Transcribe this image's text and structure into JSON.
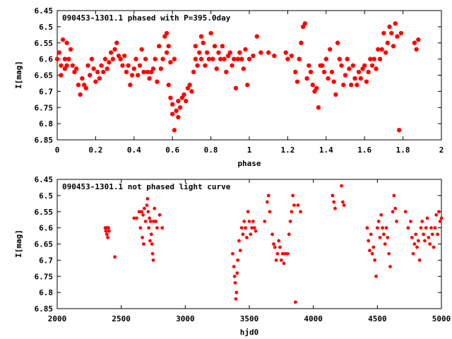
{
  "chart_data": [
    {
      "type": "scatter",
      "title": "090453-1301.1 phased with P=395.0day",
      "xlabel": "phase",
      "ylabel": "I[mag]",
      "xlim": [
        0,
        2
      ],
      "ylim": [
        6.85,
        6.45
      ],
      "y_inverted": true,
      "grid": false,
      "marker_color": "#ff0000",
      "xticks": [
        "0",
        "0.2",
        "0.4",
        "0.6",
        "0.8",
        "1",
        "1.2",
        "1.4",
        "1.6",
        "1.8",
        "2"
      ],
      "xtick_values": [
        0,
        0.2,
        0.4,
        0.6,
        0.8,
        1,
        1.2,
        1.4,
        1.6,
        1.8,
        2
      ],
      "yticks": [
        "6.45",
        "6.5",
        "6.55",
        "6.6",
        "6.65",
        "6.7",
        "6.75",
        "6.8",
        "6.85"
      ],
      "ytick_values": [
        6.45,
        6.5,
        6.55,
        6.6,
        6.65,
        6.7,
        6.75,
        6.8,
        6.85
      ],
      "points": [
        [
          0.0,
          6.6
        ],
        [
          0.01,
          6.58
        ],
        [
          0.02,
          6.62
        ],
        [
          0.02,
          6.65
        ],
        [
          0.03,
          6.54
        ],
        [
          0.04,
          6.6
        ],
        [
          0.04,
          6.63
        ],
        [
          0.05,
          6.55
        ],
        [
          0.05,
          6.62
        ],
        [
          0.06,
          6.6
        ],
        [
          0.07,
          6.57
        ],
        [
          0.08,
          6.62
        ],
        [
          0.09,
          6.64
        ],
        [
          0.1,
          6.63
        ],
        [
          0.11,
          6.68
        ],
        [
          0.12,
          6.71
        ],
        [
          0.13,
          6.66
        ],
        [
          0.14,
          6.68
        ],
        [
          0.15,
          6.69
        ],
        [
          0.16,
          6.62
        ],
        [
          0.17,
          6.65
        ],
        [
          0.18,
          6.6
        ],
        [
          0.19,
          6.63
        ],
        [
          0.2,
          6.67
        ],
        [
          0.21,
          6.64
        ],
        [
          0.22,
          6.66
        ],
        [
          0.23,
          6.62
        ],
        [
          0.24,
          6.64
        ],
        [
          0.25,
          6.6
        ],
        [
          0.26,
          6.63
        ],
        [
          0.27,
          6.61
        ],
        [
          0.28,
          6.58
        ],
        [
          0.29,
          6.6
        ],
        [
          0.3,
          6.57
        ],
        [
          0.31,
          6.55
        ],
        [
          0.32,
          6.59
        ],
        [
          0.33,
          6.6
        ],
        [
          0.34,
          6.62
        ],
        [
          0.35,
          6.59
        ],
        [
          0.36,
          6.64
        ],
        [
          0.37,
          6.62
        ],
        [
          0.38,
          6.68
        ],
        [
          0.39,
          6.65
        ],
        [
          0.4,
          6.63
        ],
        [
          0.41,
          6.6
        ],
        [
          0.42,
          6.65
        ],
        [
          0.43,
          6.62
        ],
        [
          0.44,
          6.57
        ],
        [
          0.45,
          6.64
        ],
        [
          0.46,
          6.6
        ],
        [
          0.47,
          6.64
        ],
        [
          0.48,
          6.66
        ],
        [
          0.49,
          6.64
        ],
        [
          0.5,
          6.63
        ],
        [
          0.51,
          6.6
        ],
        [
          0.52,
          6.67
        ],
        [
          0.53,
          6.56
        ],
        [
          0.54,
          6.63
        ],
        [
          0.55,
          6.6
        ],
        [
          0.56,
          6.53
        ],
        [
          0.57,
          6.52
        ],
        [
          0.57,
          6.58
        ],
        [
          0.58,
          6.56
        ],
        [
          0.58,
          6.68
        ],
        [
          0.59,
          6.72
        ],
        [
          0.59,
          6.61
        ],
        [
          0.6,
          6.74
        ],
        [
          0.6,
          6.77
        ],
        [
          0.61,
          6.82
        ],
        [
          0.61,
          6.6
        ],
        [
          0.62,
          6.76
        ],
        [
          0.63,
          6.73
        ],
        [
          0.63,
          6.78
        ],
        [
          0.64,
          6.75
        ],
        [
          0.65,
          6.72
        ],
        [
          0.66,
          6.71
        ],
        [
          0.67,
          6.73
        ],
        [
          0.68,
          6.69
        ],
        [
          0.69,
          6.68
        ],
        [
          0.7,
          6.7
        ],
        [
          0.71,
          6.64
        ],
        [
          0.72,
          6.6
        ],
        [
          0.72,
          6.56
        ],
        [
          0.73,
          6.62
        ],
        [
          0.74,
          6.58
        ],
        [
          0.75,
          6.53
        ],
        [
          0.75,
          6.6
        ],
        [
          0.76,
          6.55
        ],
        [
          0.77,
          6.62
        ],
        [
          0.78,
          6.58
        ],
        [
          0.79,
          6.6
        ],
        [
          0.8,
          6.52
        ],
        [
          0.81,
          6.6
        ],
        [
          0.82,
          6.56
        ],
        [
          0.83,
          6.63
        ],
        [
          0.84,
          6.58
        ],
        [
          0.85,
          6.6
        ],
        [
          0.86,
          6.56
        ],
        [
          0.87,
          6.6
        ],
        [
          0.88,
          6.64
        ],
        [
          0.89,
          6.59
        ],
        [
          0.9,
          6.58
        ],
        [
          0.91,
          6.62
        ],
        [
          0.92,
          6.6
        ],
        [
          0.93,
          6.69
        ],
        [
          0.94,
          6.6
        ],
        [
          0.95,
          6.58
        ],
        [
          0.96,
          6.6
        ],
        [
          0.97,
          6.63
        ],
        [
          0.98,
          6.57
        ],
        [
          0.99,
          6.68
        ],
        [
          1.0,
          6.6
        ],
        [
          1.02,
          6.59
        ],
        [
          1.04,
          6.53
        ],
        [
          1.06,
          6.58
        ],
        [
          1.1,
          6.58
        ],
        [
          1.13,
          6.59
        ],
        [
          1.19,
          6.58
        ],
        [
          1.2,
          6.6
        ],
        [
          1.22,
          6.59
        ],
        [
          1.24,
          6.64
        ],
        [
          1.25,
          6.67
        ],
        [
          1.26,
          6.6
        ],
        [
          1.27,
          6.55
        ],
        [
          1.28,
          6.5
        ],
        [
          1.29,
          6.49
        ],
        [
          1.3,
          6.66
        ],
        [
          1.31,
          6.62
        ],
        [
          1.32,
          6.64
        ],
        [
          1.33,
          6.68
        ],
        [
          1.34,
          6.7
        ],
        [
          1.35,
          6.69
        ],
        [
          1.36,
          6.75
        ],
        [
          1.37,
          6.62
        ],
        [
          1.38,
          6.62
        ],
        [
          1.39,
          6.64
        ],
        [
          1.4,
          6.6
        ],
        [
          1.41,
          6.66
        ],
        [
          1.42,
          6.57
        ],
        [
          1.43,
          6.64
        ],
        [
          1.44,
          6.67
        ],
        [
          1.45,
          6.71
        ],
        [
          1.46,
          6.55
        ],
        [
          1.47,
          6.6
        ],
        [
          1.48,
          6.62
        ],
        [
          1.49,
          6.68
        ],
        [
          1.5,
          6.65
        ],
        [
          1.51,
          6.6
        ],
        [
          1.52,
          6.63
        ],
        [
          1.53,
          6.68
        ],
        [
          1.54,
          6.62
        ],
        [
          1.55,
          6.66
        ],
        [
          1.56,
          6.68
        ],
        [
          1.57,
          6.64
        ],
        [
          1.58,
          6.66
        ],
        [
          1.59,
          6.63
        ],
        [
          1.6,
          6.62
        ],
        [
          1.61,
          6.67
        ],
        [
          1.62,
          6.64
        ],
        [
          1.63,
          6.6
        ],
        [
          1.64,
          6.62
        ],
        [
          1.65,
          6.6
        ],
        [
          1.66,
          6.63
        ],
        [
          1.67,
          6.57
        ],
        [
          1.68,
          6.6
        ],
        [
          1.69,
          6.57
        ],
        [
          1.7,
          6.52
        ],
        [
          1.71,
          6.58
        ],
        [
          1.72,
          6.55
        ],
        [
          1.73,
          6.5
        ],
        [
          1.74,
          6.52
        ],
        [
          1.75,
          6.56
        ],
        [
          1.76,
          6.49
        ],
        [
          1.77,
          6.53
        ],
        [
          1.78,
          6.82
        ],
        [
          1.79,
          6.52
        ],
        [
          1.86,
          6.55
        ],
        [
          1.87,
          6.57
        ],
        [
          1.88,
          6.54
        ]
      ]
    },
    {
      "type": "scatter",
      "title": "090453-1301.1 not phased light curve",
      "xlabel": "hjd0",
      "ylabel": "I[mag]",
      "xlim": [
        2000,
        5000
      ],
      "ylim": [
        6.85,
        6.45
      ],
      "y_inverted": true,
      "grid": false,
      "marker_color": "#ff0000",
      "xticks": [
        "2000",
        "2500",
        "3000",
        "3500",
        "4000",
        "4500",
        "5000"
      ],
      "xtick_values": [
        2000,
        2500,
        3000,
        3500,
        4000,
        4500,
        5000
      ],
      "yticks": [
        "6.45",
        "6.5",
        "6.55",
        "6.6",
        "6.65",
        "6.7",
        "6.75",
        "6.8",
        "6.85"
      ],
      "ytick_values": [
        6.45,
        6.5,
        6.55,
        6.6,
        6.65,
        6.7,
        6.75,
        6.8,
        6.85
      ],
      "points": [
        [
          2375,
          6.6
        ],
        [
          2380,
          6.61
        ],
        [
          2385,
          6.6
        ],
        [
          2388,
          6.62
        ],
        [
          2392,
          6.6
        ],
        [
          2395,
          6.63
        ],
        [
          2400,
          6.6
        ],
        [
          2405,
          6.61
        ],
        [
          2450,
          6.69
        ],
        [
          2600,
          6.57
        ],
        [
          2620,
          6.57
        ],
        [
          2640,
          6.55
        ],
        [
          2650,
          6.6
        ],
        [
          2660,
          6.55
        ],
        [
          2665,
          6.63
        ],
        [
          2670,
          6.56
        ],
        [
          2675,
          6.65
        ],
        [
          2680,
          6.54
        ],
        [
          2690,
          6.58
        ],
        [
          2700,
          6.53
        ],
        [
          2705,
          6.51
        ],
        [
          2710,
          6.55
        ],
        [
          2715,
          6.6
        ],
        [
          2720,
          6.57
        ],
        [
          2725,
          6.64
        ],
        [
          2730,
          6.58
        ],
        [
          2735,
          6.62
        ],
        [
          2740,
          6.65
        ],
        [
          2745,
          6.68
        ],
        [
          2750,
          6.7
        ],
        [
          2755,
          6.58
        ],
        [
          2760,
          6.54
        ],
        [
          2770,
          6.58
        ],
        [
          2780,
          6.6
        ],
        [
          2800,
          6.56
        ],
        [
          2820,
          6.6
        ],
        [
          3370,
          6.68
        ],
        [
          3380,
          6.72
        ],
        [
          3385,
          6.75
        ],
        [
          3390,
          6.77
        ],
        [
          3395,
          6.82
        ],
        [
          3400,
          6.8
        ],
        [
          3405,
          6.74
        ],
        [
          3410,
          6.7
        ],
        [
          3420,
          6.64
        ],
        [
          3430,
          6.67
        ],
        [
          3440,
          6.6
        ],
        [
          3450,
          6.62
        ],
        [
          3460,
          6.58
        ],
        [
          3470,
          6.6
        ],
        [
          3480,
          6.63
        ],
        [
          3490,
          6.55
        ],
        [
          3500,
          6.58
        ],
        [
          3510,
          6.62
        ],
        [
          3520,
          6.6
        ],
        [
          3530,
          6.58
        ],
        [
          3540,
          6.6
        ],
        [
          3550,
          6.61
        ],
        [
          3620,
          6.58
        ],
        [
          3640,
          6.52
        ],
        [
          3650,
          6.5
        ],
        [
          3660,
          6.55
        ],
        [
          3680,
          6.62
        ],
        [
          3690,
          6.65
        ],
        [
          3700,
          6.66
        ],
        [
          3710,
          6.7
        ],
        [
          3720,
          6.68
        ],
        [
          3730,
          6.64
        ],
        [
          3740,
          6.66
        ],
        [
          3750,
          6.7
        ],
        [
          3760,
          6.68
        ],
        [
          3770,
          6.71
        ],
        [
          3780,
          6.68
        ],
        [
          3800,
          6.68
        ],
        [
          3810,
          6.62
        ],
        [
          3820,
          6.58
        ],
        [
          3830,
          6.55
        ],
        [
          3840,
          6.5
        ],
        [
          3850,
          6.53
        ],
        [
          3860,
          6.83
        ],
        [
          3880,
          6.53
        ],
        [
          3900,
          6.55
        ],
        [
          4150,
          6.5
        ],
        [
          4160,
          6.52
        ],
        [
          4170,
          6.54
        ],
        [
          4220,
          6.47
        ],
        [
          4230,
          6.52
        ],
        [
          4240,
          6.53
        ],
        [
          4420,
          6.6
        ],
        [
          4430,
          6.64
        ],
        [
          4440,
          6.67
        ],
        [
          4450,
          6.62
        ],
        [
          4460,
          6.68
        ],
        [
          4470,
          6.66
        ],
        [
          4480,
          6.7
        ],
        [
          4490,
          6.75
        ],
        [
          4500,
          6.6
        ],
        [
          4510,
          6.58
        ],
        [
          4520,
          6.63
        ],
        [
          4530,
          6.56
        ],
        [
          4540,
          6.6
        ],
        [
          4550,
          6.62
        ],
        [
          4560,
          6.65
        ],
        [
          4570,
          6.6
        ],
        [
          4580,
          6.63
        ],
        [
          4590,
          6.68
        ],
        [
          4600,
          6.72
        ],
        [
          4620,
          6.55
        ],
        [
          4630,
          6.5
        ],
        [
          4640,
          6.54
        ],
        [
          4650,
          6.58
        ],
        [
          4720,
          6.55
        ],
        [
          4740,
          6.6
        ],
        [
          4760,
          6.58
        ],
        [
          4770,
          6.63
        ],
        [
          4780,
          6.68
        ],
        [
          4790,
          6.65
        ],
        [
          4800,
          6.62
        ],
        [
          4810,
          6.66
        ],
        [
          4820,
          6.64
        ],
        [
          4830,
          6.7
        ],
        [
          4840,
          6.6
        ],
        [
          4850,
          6.58
        ],
        [
          4860,
          6.62
        ],
        [
          4870,
          6.64
        ],
        [
          4880,
          6.6
        ],
        [
          4890,
          6.57
        ],
        [
          4900,
          6.63
        ],
        [
          4910,
          6.65
        ],
        [
          4920,
          6.6
        ],
        [
          4930,
          6.62
        ],
        [
          4940,
          6.66
        ],
        [
          4950,
          6.6
        ],
        [
          4960,
          6.56
        ],
        [
          4970,
          6.62
        ],
        [
          4980,
          6.55
        ],
        [
          4990,
          6.58
        ],
        [
          5000,
          6.57
        ]
      ]
    }
  ]
}
